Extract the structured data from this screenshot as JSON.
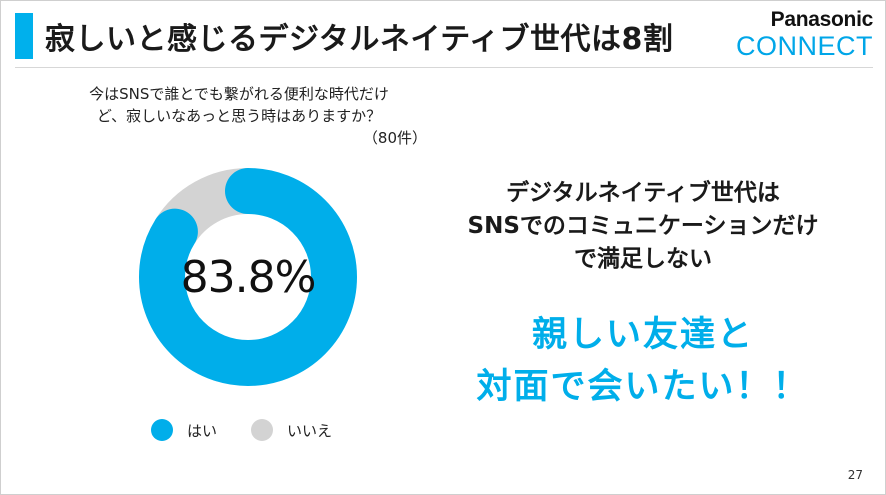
{
  "header": {
    "title": "寂しいと感じるデジタルネイティブ世代は8割",
    "accent_color": "#00b0ec"
  },
  "logo": {
    "brand": "Panasonic",
    "sub": "CONNECT"
  },
  "question": {
    "line1": "今はSNSで誰とでも繋がれる便利な時代だけ",
    "line2": "ど、寂しいなあっと思う時はありますか？",
    "sample": "（80件）"
  },
  "chart_data": {
    "type": "pie",
    "variant": "donut",
    "categories": [
      "はい",
      "いいえ"
    ],
    "values": [
      83.8,
      16.2
    ],
    "colors": [
      "#00aeea",
      "#d3d3d3"
    ],
    "center_label": "83.8%",
    "legend_position": "bottom"
  },
  "legend": [
    {
      "label": "はい",
      "color": "#00aeea"
    },
    {
      "label": "いいえ",
      "color": "#d3d3d3"
    }
  ],
  "message": {
    "line1": "デジタルネイティブ世代は",
    "line2": "SNSでのコミュニケーションだけ",
    "line3": "で満足しない"
  },
  "highlight": {
    "line1": "親しい友達と",
    "line2": "対面で会いたい！！",
    "color": "#00aeea"
  },
  "page_number": "27"
}
